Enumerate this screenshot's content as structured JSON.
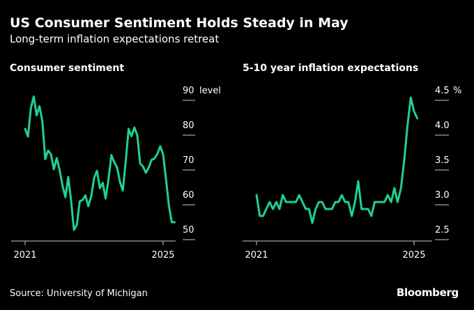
{
  "title": "US Consumer Sentiment Holds Steady in May",
  "subtitle": "Long-term inflation expectations retreat",
  "source": "Source: University of Michigan",
  "logo": "Bloomberg",
  "colors": {
    "line": "#1fd18c",
    "background": "#000000",
    "text": "#ffffff",
    "tick": "#cccccc"
  },
  "chart_data": [
    {
      "type": "line",
      "title": "Consumer sentiment",
      "ylabel": "level",
      "ylim": [
        48,
        92
      ],
      "yticks": [
        50,
        60,
        70,
        80,
        90
      ],
      "ytick_labels": [
        "50",
        "60",
        "70",
        "80",
        "90"
      ],
      "unit_label": "level",
      "xticks": [
        2021,
        2025
      ],
      "xtick_labels": [
        "2021",
        "2025"
      ],
      "xlim": [
        2021.0,
        2025.37
      ],
      "grid": false,
      "series": [
        {
          "x": [
            2021.0,
            2021.083,
            2021.167,
            2021.25,
            2021.333,
            2021.417,
            2021.5,
            2021.583,
            2021.667,
            2021.75,
            2021.833,
            2021.917,
            2022.0,
            2022.083,
            2022.167,
            2022.25,
            2022.333,
            2022.417,
            2022.5,
            2022.583,
            2022.667,
            2022.75,
            2022.833,
            2022.917,
            2023.0,
            2023.083,
            2023.167,
            2023.25,
            2023.333,
            2023.417,
            2023.5,
            2023.583,
            2023.667,
            2023.75,
            2023.833,
            2023.917,
            2024.0,
            2024.083,
            2024.167,
            2024.25,
            2024.333,
            2024.417,
            2024.5,
            2024.583,
            2024.667,
            2024.75,
            2024.833,
            2024.917,
            2025.0,
            2025.083,
            2025.167,
            2025.25,
            2025.333
          ],
          "values": [
            79.0,
            76.8,
            84.9,
            88.3,
            82.9,
            85.5,
            81.2,
            70.3,
            72.8,
            71.7,
            67.4,
            70.6,
            67.2,
            62.8,
            59.4,
            65.2,
            58.4,
            50.0,
            51.5,
            58.2,
            58.6,
            59.9,
            56.8,
            59.7,
            64.9,
            67.0,
            62.0,
            63.5,
            59.0,
            64.4,
            71.5,
            69.4,
            67.9,
            63.8,
            61.3,
            69.7,
            79.0,
            76.9,
            79.4,
            77.2,
            69.1,
            68.2,
            66.4,
            67.9,
            70.1,
            70.5,
            71.8,
            74.0,
            71.7,
            64.7,
            57.0,
            52.2,
            52.2
          ]
        }
      ]
    },
    {
      "type": "line",
      "title": "5-10 year inflation expectations",
      "ylabel": "%",
      "ylim": [
        2.35,
        4.6
      ],
      "yticks": [
        2.5,
        3.0,
        3.5,
        4.0,
        4.5
      ],
      "ytick_labels": [
        "2.5",
        "3.0",
        "3.5",
        "4.0",
        "4.5"
      ],
      "unit_label": "%",
      "xticks": [
        2021,
        2025
      ],
      "xtick_labels": [
        "2021",
        "2025"
      ],
      "xlim": [
        2021.0,
        2025.37
      ],
      "grid": false,
      "series": [
        {
          "x": [
            2021.0,
            2021.083,
            2021.167,
            2021.25,
            2021.333,
            2021.417,
            2021.5,
            2021.583,
            2021.667,
            2021.75,
            2021.833,
            2021.917,
            2022.0,
            2022.083,
            2022.167,
            2022.25,
            2022.333,
            2022.417,
            2022.5,
            2022.583,
            2022.667,
            2022.75,
            2022.833,
            2022.917,
            2023.0,
            2023.083,
            2023.167,
            2023.25,
            2023.333,
            2023.417,
            2023.5,
            2023.583,
            2023.667,
            2023.75,
            2023.833,
            2023.917,
            2024.0,
            2024.083,
            2024.167,
            2024.25,
            2024.333,
            2024.417,
            2024.5,
            2024.583,
            2024.667,
            2024.75,
            2024.833,
            2024.917,
            2025.0,
            2025.083
          ],
          "values": [
            3.0,
            2.7,
            2.7,
            2.8,
            2.9,
            2.8,
            2.9,
            2.8,
            3.0,
            2.9,
            2.9,
            2.9,
            2.9,
            3.0,
            2.9,
            2.8,
            2.8,
            2.6,
            2.8,
            2.9,
            2.9,
            2.8,
            2.8,
            2.8,
            2.9,
            2.9,
            3.0,
            2.9,
            2.9,
            2.7,
            2.9,
            3.2,
            2.8,
            2.8,
            2.8,
            2.7,
            2.9,
            2.9,
            2.9,
            2.9,
            3.0,
            2.9,
            3.1,
            2.9,
            3.1,
            3.5,
            4.0,
            4.4,
            4.2,
            4.1
          ]
        }
      ]
    }
  ]
}
